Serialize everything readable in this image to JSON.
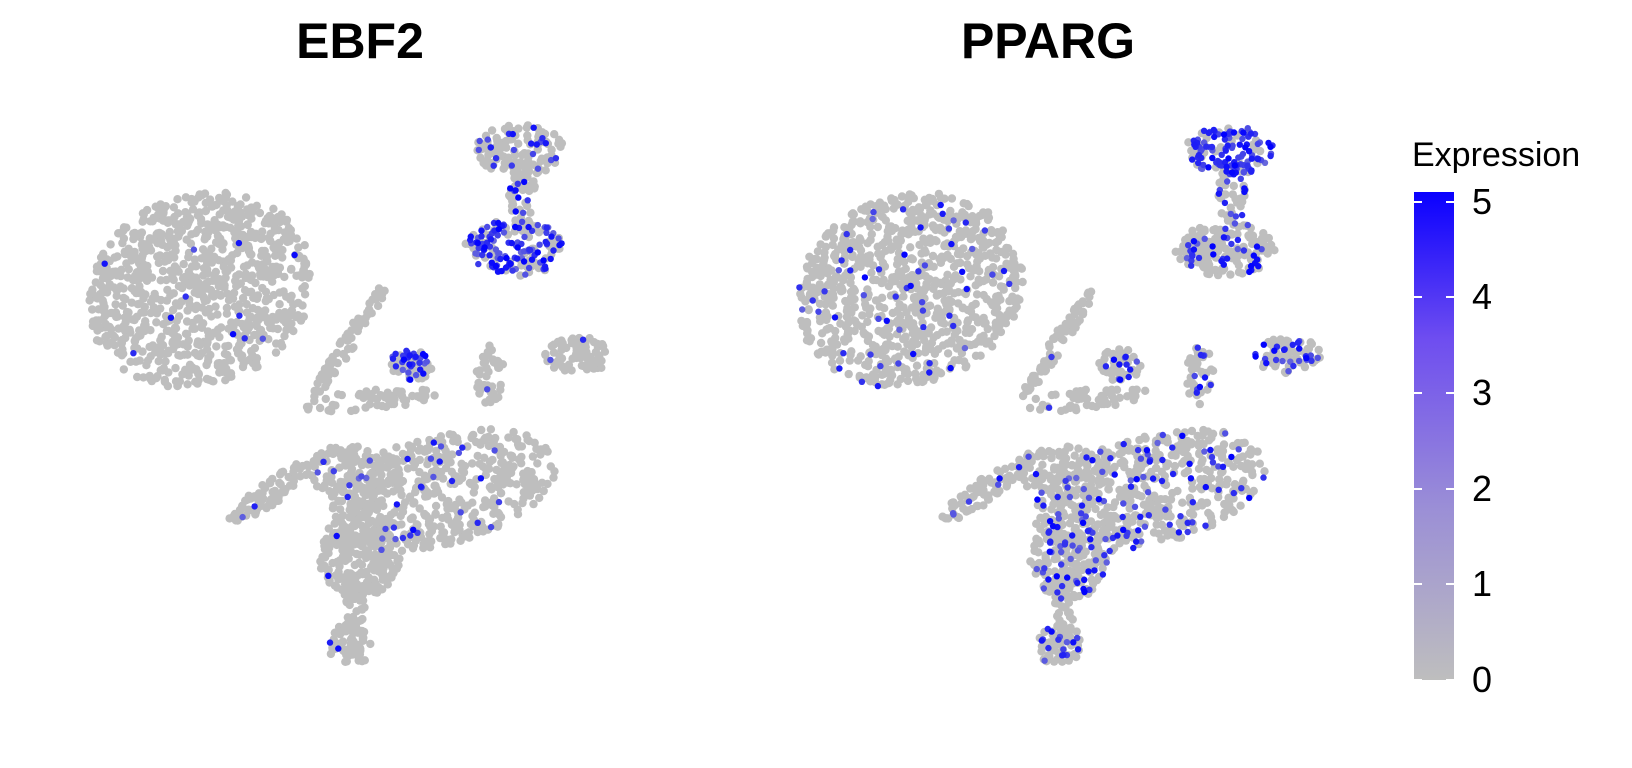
{
  "chart_data": [
    {
      "type": "scatter",
      "title": "EBF2",
      "xlabel": "",
      "ylabel": "",
      "grid": false,
      "notes_on_expression": "high expression concentrated in top-right cluster (lower lobe) and small middle-right cluster; sparse elsewhere",
      "color_scale": {
        "low": "#bebebe",
        "high": "#0000ff",
        "min": 0,
        "max": 5
      }
    },
    {
      "type": "scatter",
      "title": "PPARG",
      "xlabel": "",
      "ylabel": "",
      "grid": false,
      "notes_on_expression": "high expression concentrated in top-right cluster (upper lobe); moderate scattered expression in right-side and lower clusters",
      "color_scale": {
        "low": "#bebebe",
        "high": "#0000ff",
        "min": 0,
        "max": 5
      }
    }
  ],
  "legend": {
    "title": "Expression",
    "ticks": [
      "0",
      "1",
      "2",
      "3",
      "4",
      "5"
    ],
    "tick_values": [
      0,
      1,
      2,
      3,
      4,
      5
    ],
    "range": [
      0,
      5.1
    ]
  },
  "colors": {
    "low": "#bebebe",
    "high": "#0000ff"
  }
}
